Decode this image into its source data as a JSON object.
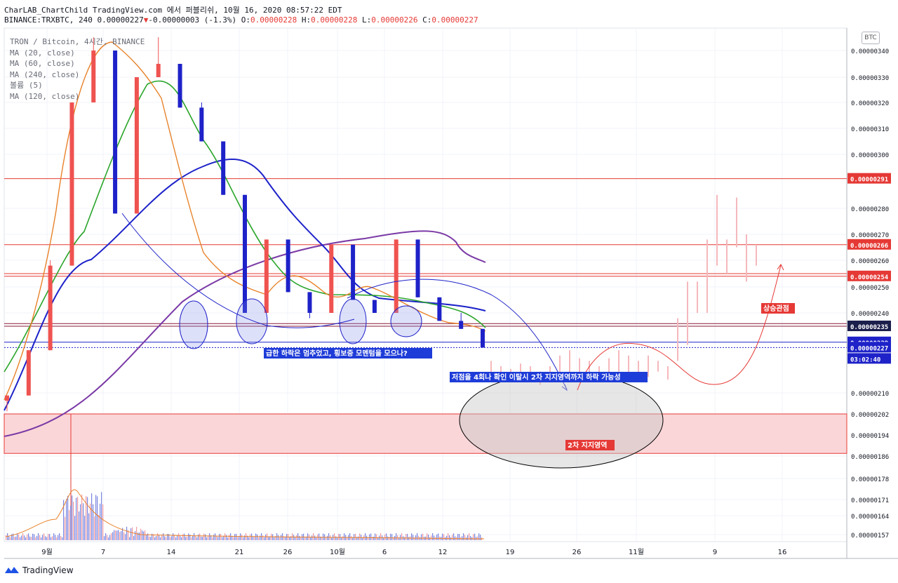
{
  "header": {
    "title_line": "CharLAB_ChartChild TradingView.com 에서 퍼블리쉬, 10월 16, 2020 08:57:22 EDT",
    "symbol": "BINANCE:TRXBTC, 240",
    "last": "0.00000227",
    "change": "-0.00000003 (-1.3%)",
    "o_label": "O:",
    "o_value": "0.00000228",
    "h_label": "H:",
    "h_value": "0.00000228",
    "l_label": "L:",
    "l_value": "0.00000226",
    "c_label": "C:",
    "c_value": "0.00000227"
  },
  "legend": {
    "pair": "TRON / Bitcoin, 4시간, BINANCE",
    "ma20": "MA (20, close)",
    "ma60": "MA (60, close)",
    "ma240": "MA (240, close)",
    "volume": "볼륨 (5)",
    "ma120": "MA (120, close)"
  },
  "currency_badge": "BTC",
  "footer": {
    "brand": "TradingView"
  },
  "colors": {
    "up": "#ef5350",
    "down": "#1e22c8",
    "ma20": "#e8822a",
    "ma60": "#2aa52a",
    "ma120": "#1d22c9",
    "ma240": "#7b3aa6",
    "level": "#e53935",
    "zone": "#fbd6d8",
    "annotation_bg": "#1e3cd8",
    "red_label_bg": "#e53935"
  },
  "chart_data": {
    "type": "candlestick",
    "ylim": [
      1.54e-06,
      3.48e-06
    ],
    "y_ticks": [
      "0.00000340",
      "0.00000330",
      "0.00000320",
      "0.00000310",
      "0.00000300",
      "0.00000280",
      "0.00000270",
      "0.00000260",
      "0.00000250",
      "0.00000240",
      "0.00000210",
      "0.00000202",
      "0.00000194",
      "0.00000186",
      "0.00000178",
      "0.00000171",
      "0.00000164",
      "0.00000157"
    ],
    "x_ticks": [
      "9월",
      "7",
      "14",
      "21",
      "26",
      "10월",
      "6",
      "12",
      "19",
      "26",
      "11월",
      "9",
      "16"
    ],
    "price_labels": [
      {
        "value": "0.00000291",
        "kind": "level"
      },
      {
        "value": "0.00000266",
        "kind": "level"
      },
      {
        "value": "0.00000254",
        "kind": "level"
      },
      {
        "value": "0.00000235",
        "kind": "dark"
      },
      {
        "value": "0.00000229",
        "kind": "blue"
      },
      {
        "value": "0.00000227",
        "kind": "blue"
      },
      {
        "value": "03:02:40",
        "kind": "timer"
      }
    ],
    "horizontal_levels": [
      2.91e-06,
      2.66e-06,
      2.55e-06,
      2.54e-06,
      2.36e-06,
      2.35e-06
    ],
    "support_zone": [
      1.87e-06,
      2.02e-06
    ],
    "candles_ohlc_close_path": [
      [
        2.07e-06,
        2.03e-06,
        2.06e-06,
        2.09e-06
      ],
      [
        2.09e-06,
        2.15e-06,
        2.22e-06,
        2.26e-06
      ],
      [
        2.26e-06,
        2.45e-06,
        2.6e-06,
        2.58e-06
      ],
      [
        2.58e-06,
        2.85e-06,
        3e-06,
        3.2e-06
      ],
      [
        3.2e-06,
        3.3e-06,
        3.45e-06,
        3.4e-06
      ],
      [
        3.4e-06,
        3.1e-06,
        3e-06,
        2.78e-06
      ],
      [
        2.78e-06,
        3.05e-06,
        3.2e-06,
        3.3e-06
      ],
      [
        3.3e-06,
        3.45e-06,
        3.4e-06,
        3.35e-06
      ],
      [
        3.35e-06,
        3.2e-06,
        3.3e-06,
        3.18e-06
      ],
      [
        3.18e-06,
        3.1e-06,
        3.2e-06,
        3.05e-06
      ],
      [
        3.05e-06,
        2.96e-06,
        2.98e-06,
        2.85e-06
      ],
      [
        2.85e-06,
        2.7e-06,
        2.55e-06,
        2.4e-06
      ],
      [
        2.4e-06,
        2.52e-06,
        2.62e-06,
        2.68e-06
      ],
      [
        2.68e-06,
        2.58e-06,
        2.52e-06,
        2.48e-06
      ],
      [
        2.48e-06,
        2.4e-06,
        2.38e-06,
        2.4e-06
      ],
      [
        2.4e-06,
        2.44e-06,
        2.5e-06,
        2.66e-06
      ],
      [
        2.66e-06,
        2.52e-06,
        2.46e-06,
        2.45e-06
      ],
      [
        2.45e-06,
        2.42e-06,
        2.44e-06,
        2.4e-06
      ],
      [
        2.4e-06,
        2.45e-06,
        2.62e-06,
        2.68e-06
      ],
      [
        2.68e-06,
        2.5e-06,
        2.48e-06,
        2.46e-06
      ],
      [
        2.46e-06,
        2.42e-06,
        2.38e-06,
        2.37e-06
      ],
      [
        2.37e-06,
        2.4e-06,
        2.36e-06,
        2.34e-06
      ],
      [
        2.34e-06,
        2.33e-06,
        2.3e-06,
        2.27e-06
      ]
    ],
    "projection_candles": [
      [
        2.22e-06,
        2.16e-06
      ],
      [
        2.2e-06,
        2.15e-06
      ],
      [
        2.19e-06,
        2.14e-06
      ],
      [
        2.21e-06,
        2.15e-06
      ],
      [
        2.2e-06,
        2.14e-06
      ],
      [
        2.18e-06,
        2.13e-06
      ],
      [
        2.2e-06,
        2.15e-06
      ],
      [
        2.24e-06,
        2.14e-06
      ],
      [
        2.26e-06,
        2.16e-06
      ],
      [
        2.23e-06,
        2.17e-06
      ],
      [
        2.22e-06,
        2.16e-06
      ],
      [
        2.2e-06,
        2.15e-06
      ],
      [
        2.23e-06,
        2.16e-06
      ],
      [
        2.26e-06,
        2.18e-06
      ],
      [
        2.24e-06,
        2.17e-06
      ],
      [
        2.22e-06,
        2.16e-06
      ],
      [
        2.24e-06,
        2.16e-06
      ],
      [
        2.22e-06,
        2.18e-06
      ],
      [
        2.2e-06,
        2.15e-06
      ],
      [
        2.38e-06,
        2.22e-06
      ],
      [
        2.52e-06,
        2.28e-06
      ],
      [
        2.52e-06,
        2.4e-06
      ],
      [
        2.68e-06,
        2.4e-06
      ],
      [
        2.85e-06,
        2.58e-06
      ],
      [
        2.68e-06,
        2.55e-06
      ],
      [
        2.84e-06,
        2.65e-06
      ],
      [
        2.7e-06,
        2.52e-06
      ],
      [
        2.66e-06,
        2.58e-06
      ]
    ],
    "annotations": [
      {
        "text": "급한 하락은 멈추었고, 횡보중 모멘텀을 모으나?",
        "kind": "blue"
      },
      {
        "text": "저점을 4회나 확인 이탈시 2차 지지영역까지 하락 가능성",
        "kind": "blue"
      },
      {
        "text": "2차 지지영역",
        "kind": "red"
      },
      {
        "text": "상승관점",
        "kind": "red"
      }
    ]
  }
}
